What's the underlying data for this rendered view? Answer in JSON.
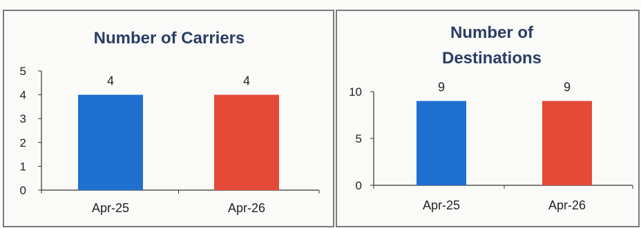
{
  "colors": {
    "series_apr25": "#1f70cf",
    "series_apr26": "#e44a37",
    "title": "#2a3d64",
    "axis": "#333333",
    "text": "#222222"
  },
  "chart_data": [
    {
      "type": "bar",
      "title": "Number of Carriers",
      "categories": [
        "Apr-25",
        "Apr-26"
      ],
      "values": [
        4,
        4
      ],
      "data_labels": [
        "4",
        "4"
      ],
      "colors": [
        "#1f70cf",
        "#e44a37"
      ],
      "ylim": [
        0,
        5
      ],
      "yticks": [
        "0",
        "1",
        "2",
        "3",
        "4",
        "5"
      ],
      "grid": false,
      "legend": "none"
    },
    {
      "type": "bar",
      "title": [
        "Number of",
        "Destinations"
      ],
      "categories": [
        "Apr-25",
        "Apr-26"
      ],
      "values": [
        9,
        9
      ],
      "data_labels": [
        "9",
        "9"
      ],
      "colors": [
        "#1f70cf",
        "#e44a37"
      ],
      "ylim": [
        0,
        10
      ],
      "yticks": [
        "0",
        "5",
        "10"
      ],
      "grid": false,
      "legend": "none"
    }
  ]
}
